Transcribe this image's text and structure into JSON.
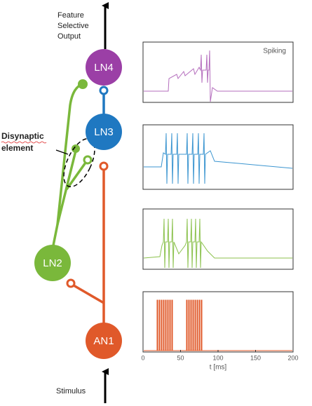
{
  "output_label": [
    "Feature",
    "Selective",
    "Output"
  ],
  "neurons": {
    "ln4": "LN4",
    "ln3": "LN3",
    "ln2": "LN2",
    "an1": "AN1"
  },
  "annotation": [
    "Disynaptic",
    "element"
  ],
  "input_label": "Stimulus",
  "panel_label": "Spiking",
  "axis": {
    "label": "t [ms]",
    "xlim": [
      0,
      200
    ],
    "xticks": [
      0,
      50,
      100,
      150,
      200
    ]
  }
}
